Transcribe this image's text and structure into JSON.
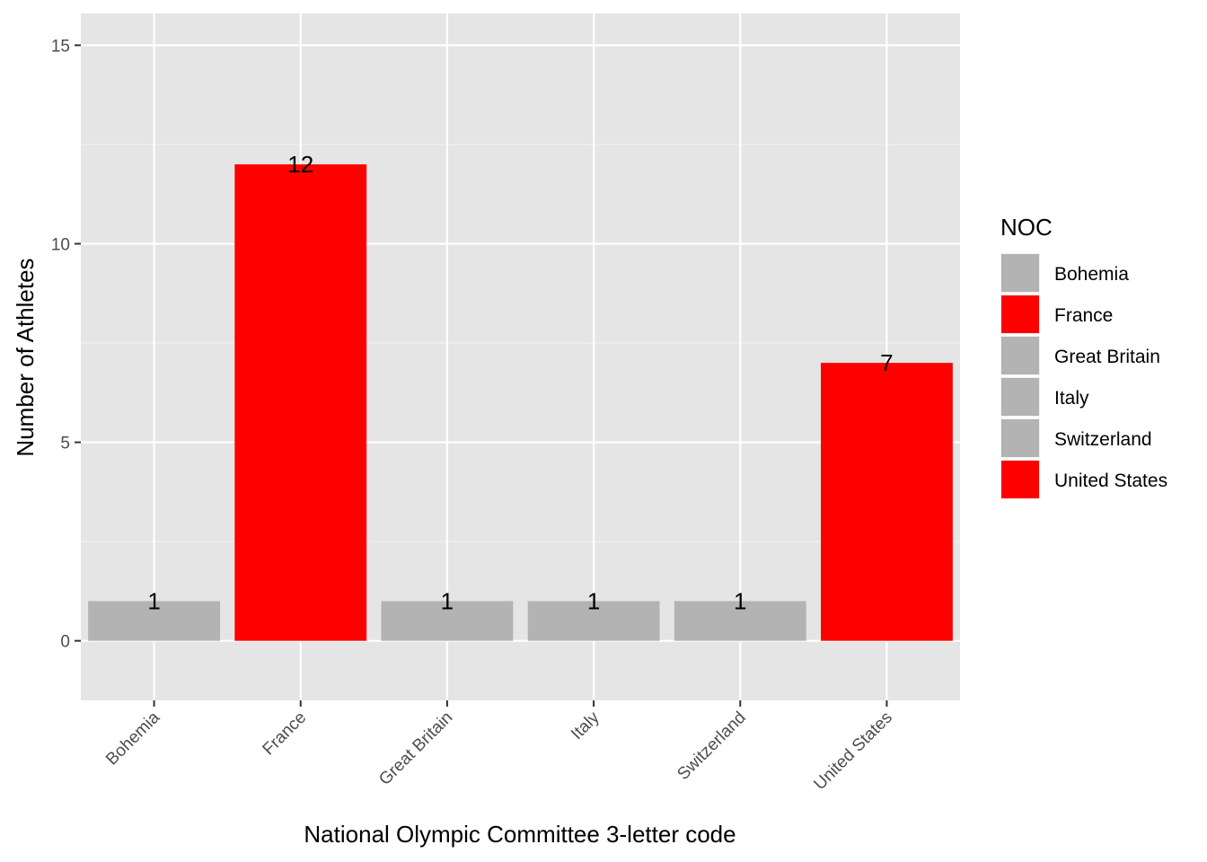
{
  "chart_data": {
    "type": "bar",
    "categories": [
      "Bohemia",
      "France",
      "Great Britain",
      "Italy",
      "Switzerland",
      "United States"
    ],
    "values": [
      1,
      12,
      1,
      1,
      1,
      7
    ],
    "data_labels": [
      "1",
      "12",
      "1",
      "1",
      "1",
      "7"
    ],
    "colors": [
      "#b3b3b3",
      "#ff0000",
      "#b3b3b3",
      "#b3b3b3",
      "#b3b3b3",
      "#ff0000"
    ],
    "xlabel": "National Olympic Committee 3-letter code",
    "ylabel": "Number of Athletes",
    "ylim": [
      -1.5,
      15.8
    ],
    "yticks": [
      0,
      5,
      10,
      15
    ],
    "ytick_labels": [
      "0",
      "5",
      "10",
      "15"
    ],
    "grid": true,
    "panel_background": "#e5e5e5",
    "legend": {
      "title": "NOC",
      "placement": "right",
      "entries": [
        {
          "label": "Bohemia",
          "color": "#b3b3b3"
        },
        {
          "label": "France",
          "color": "#ff0000"
        },
        {
          "label": "Great Britain",
          "color": "#b3b3b3"
        },
        {
          "label": "Italy",
          "color": "#b3b3b3"
        },
        {
          "label": "Switzerland",
          "color": "#b3b3b3"
        },
        {
          "label": "United States",
          "color": "#ff0000"
        }
      ]
    }
  }
}
